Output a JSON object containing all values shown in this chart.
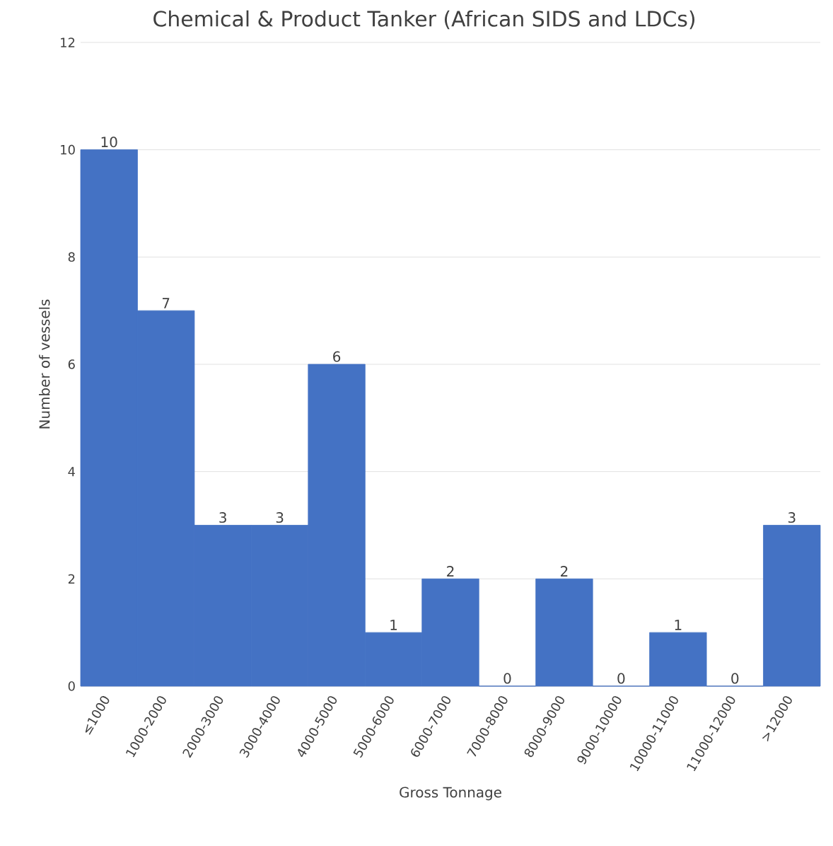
{
  "chart_data": {
    "type": "bar",
    "title": "Chemical & Product Tanker  (African SIDS and LDCs)",
    "xlabel": "Gross Tonnage",
    "ylabel": "Number of vessels",
    "categories": [
      "≤1000",
      "1000-2000",
      "2000-3000",
      "3000-4000",
      "4000-5000",
      "5000-6000",
      "6000-7000",
      "7000-8000",
      "8000-9000",
      "9000-10000",
      "10000-11000",
      "11000-12000",
      ">12000"
    ],
    "values": [
      10,
      7,
      3,
      3,
      6,
      1,
      2,
      0,
      2,
      0,
      1,
      0,
      3
    ],
    "color": "#4472c4",
    "ylim": [
      0,
      12
    ],
    "yticks": [
      0,
      2,
      4,
      6,
      8,
      10,
      12
    ],
    "grid": "y",
    "data_labels": true
  }
}
